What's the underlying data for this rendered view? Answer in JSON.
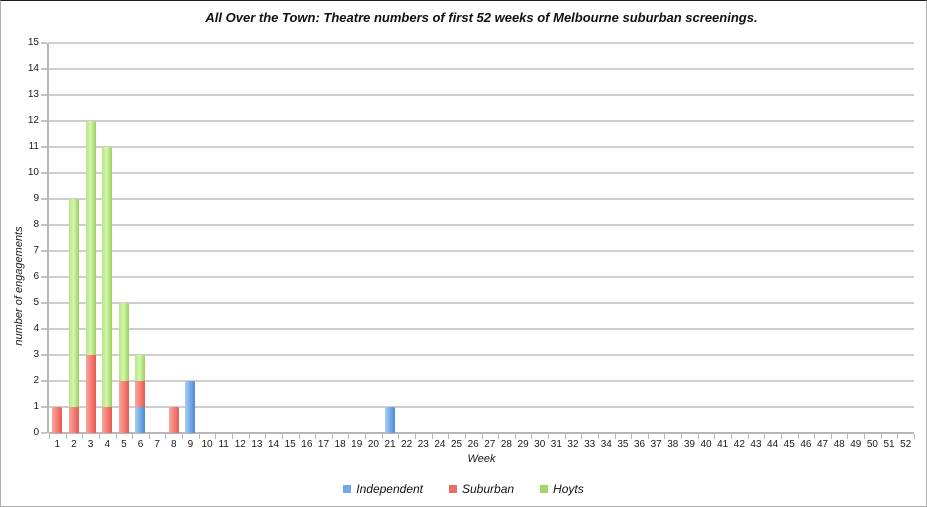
{
  "chart_data": {
    "type": "bar",
    "stacked": true,
    "title": "All Over the Town: Theatre numbers of first 52 weeks of Melbourne suburban screenings.",
    "xlabel": "Week",
    "ylabel": "number of engagements",
    "ylim": [
      0,
      15
    ],
    "ytick_step": 1,
    "yticks": [
      0,
      1,
      2,
      3,
      4,
      5,
      6,
      7,
      8,
      9,
      10,
      11,
      12,
      13,
      14,
      15
    ],
    "grid": true,
    "legend_position": "bottom",
    "categories": [
      1,
      2,
      3,
      4,
      5,
      6,
      7,
      8,
      9,
      10,
      11,
      12,
      13,
      14,
      15,
      16,
      17,
      18,
      19,
      20,
      21,
      22,
      23,
      24,
      25,
      26,
      27,
      28,
      29,
      30,
      31,
      32,
      33,
      34,
      35,
      36,
      37,
      38,
      39,
      40,
      41,
      42,
      43,
      44,
      45,
      46,
      47,
      48,
      49,
      50,
      51,
      52
    ],
    "series": [
      {
        "name": "Independent",
        "color": "#74a9e8",
        "gradient": [
          "#a9cdf4",
          "#7dafe9",
          "#4c8bd5"
        ],
        "values": [
          0,
          0,
          0,
          0,
          0,
          1,
          0,
          0,
          2,
          0,
          0,
          0,
          0,
          0,
          0,
          0,
          0,
          0,
          0,
          0,
          1,
          0,
          0,
          0,
          0,
          0,
          0,
          0,
          0,
          0,
          0,
          0,
          0,
          0,
          0,
          0,
          0,
          0,
          0,
          0,
          0,
          0,
          0,
          0,
          0,
          0,
          0,
          0,
          0,
          0,
          0,
          0
        ]
      },
      {
        "name": "Suburban",
        "color": "#ee6c63",
        "gradient": [
          "#f7a59d",
          "#f5847c",
          "#e65a51"
        ],
        "values": [
          1,
          1,
          3,
          1,
          2,
          1,
          0,
          1,
          0,
          0,
          0,
          0,
          0,
          0,
          0,
          0,
          0,
          0,
          0,
          0,
          0,
          0,
          0,
          0,
          0,
          0,
          0,
          0,
          0,
          0,
          0,
          0,
          0,
          0,
          0,
          0,
          0,
          0,
          0,
          0,
          0,
          0,
          0,
          0,
          0,
          0,
          0,
          0,
          0,
          0,
          0,
          0
        ]
      },
      {
        "name": "Hoyts",
        "color": "#a2d866",
        "gradient": [
          "#b7e584",
          "#d5f6ac",
          "#9bcf5e"
        ],
        "values": [
          0,
          8,
          9,
          10,
          3,
          1,
          0,
          0,
          0,
          0,
          0,
          0,
          0,
          0,
          0,
          0,
          0,
          0,
          0,
          0,
          0,
          0,
          0,
          0,
          0,
          0,
          0,
          0,
          0,
          0,
          0,
          0,
          0,
          0,
          0,
          0,
          0,
          0,
          0,
          0,
          0,
          0,
          0,
          0,
          0,
          0,
          0,
          0,
          0,
          0,
          0,
          0
        ]
      }
    ]
  }
}
